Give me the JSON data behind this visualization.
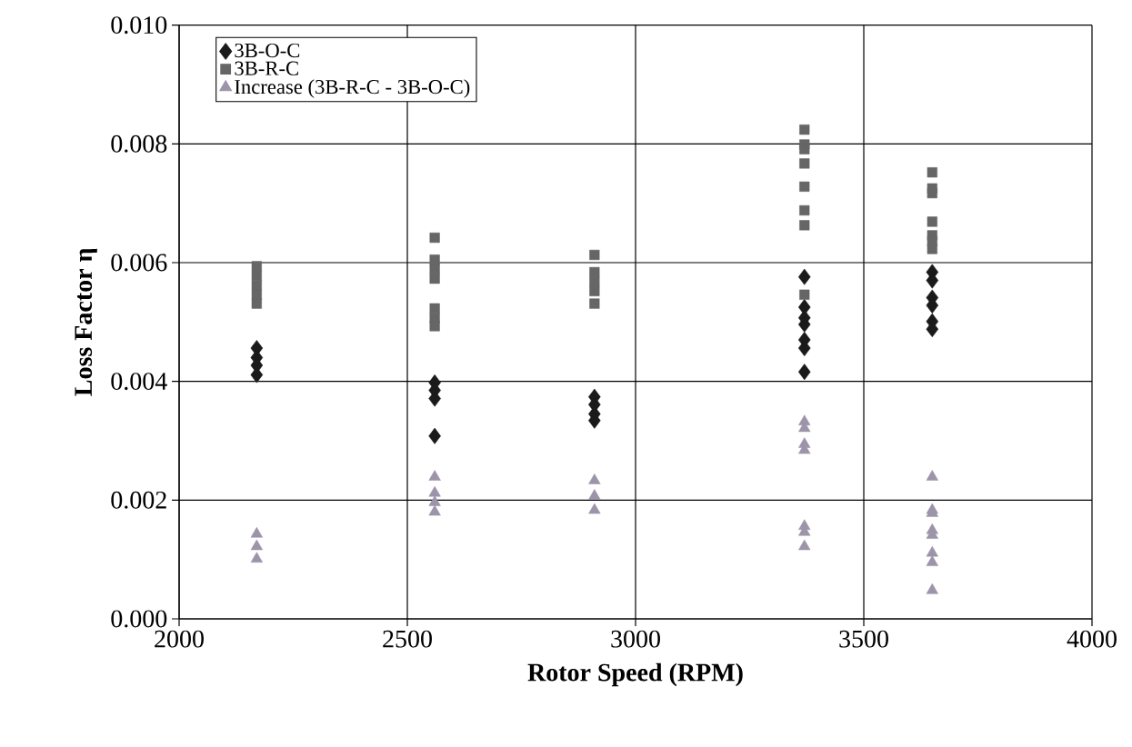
{
  "chart_data": {
    "type": "scatter",
    "xlabel": "Rotor Speed (RPM)",
    "ylabel": "Loss Factor η",
    "xlim": [
      2000,
      4000
    ],
    "xticks": [
      2000,
      2500,
      3000,
      3500,
      4000
    ],
    "ylim": [
      0,
      0.01
    ],
    "yticks": [
      {
        "value": 0,
        "label": "0.000"
      },
      {
        "value": 0.002,
        "label": "0.002"
      },
      {
        "value": 0.004,
        "label": "0.004"
      },
      {
        "value": 0.006,
        "label": "0.006"
      },
      {
        "value": 0.008,
        "label": "0.008"
      },
      {
        "value": 0.01,
        "label": "0.010"
      }
    ],
    "grid": true,
    "legend": "top left",
    "series": [
      {
        "name": "3B-O-C",
        "color": "#1a1a1a",
        "marker": "diamond",
        "x": [
          2170,
          2170,
          2170,
          2170,
          2560,
          2560,
          2560,
          2560,
          2910,
          2910,
          2910,
          2910,
          3370,
          3370,
          3370,
          3370,
          3370,
          3370,
          3370,
          3650,
          3650,
          3650,
          3650,
          3650,
          3650
        ],
        "values": [
          0.00456,
          0.0044,
          0.00427,
          0.00411,
          0.00398,
          0.00385,
          0.00371,
          0.00308,
          0.00374,
          0.00361,
          0.00345,
          0.00334,
          0.00576,
          0.00525,
          0.00507,
          0.00496,
          0.0047,
          0.00456,
          0.00416,
          0.00584,
          0.0057,
          0.00541,
          0.00528,
          0.00501,
          0.00488
        ]
      },
      {
        "name": "3B-R-C",
        "color": "#666666",
        "marker": "square",
        "x": [
          2170,
          2170,
          2170,
          2170,
          2170,
          2560,
          2560,
          2560,
          2560,
          2560,
          2560,
          2560,
          2910,
          2910,
          2910,
          2910,
          2910,
          3370,
          3370,
          3370,
          3370,
          3370,
          3370,
          3370,
          3370,
          3650,
          3650,
          3650,
          3650,
          3650,
          3650,
          3650
        ],
        "values": [
          0.00594,
          0.00578,
          0.00562,
          0.00546,
          0.00531,
          0.00642,
          0.00605,
          0.00589,
          0.00573,
          0.00523,
          0.00507,
          0.00493,
          0.00613,
          0.00584,
          0.00568,
          0.00552,
          0.00531,
          0.00824,
          0.00799,
          0.00791,
          0.00767,
          0.00728,
          0.00688,
          0.00663,
          0.00546,
          0.00752,
          0.00725,
          0.00717,
          0.00669,
          0.00646,
          0.00636,
          0.00623
        ]
      },
      {
        "name": "Increase (3B-R-C - 3B-O-C)",
        "color": "#9c94a8",
        "marker": "triangle",
        "x": [
          2170,
          2170,
          2170,
          2560,
          2560,
          2560,
          2560,
          2910,
          2910,
          2910,
          3370,
          3370,
          3370,
          3370,
          3370,
          3370,
          3370,
          3650,
          3650,
          3650,
          3650,
          3650,
          3650,
          3650,
          3650
        ],
        "values": [
          0.00143,
          0.00122,
          0.00101,
          0.00239,
          0.00212,
          0.00196,
          0.0018,
          0.00233,
          0.00207,
          0.00183,
          0.00332,
          0.00321,
          0.00294,
          0.00284,
          0.00156,
          0.00146,
          0.00122,
          0.00239,
          0.00183,
          0.00178,
          0.00149,
          0.00141,
          0.00111,
          0.00095,
          0.00048
        ]
      }
    ]
  }
}
